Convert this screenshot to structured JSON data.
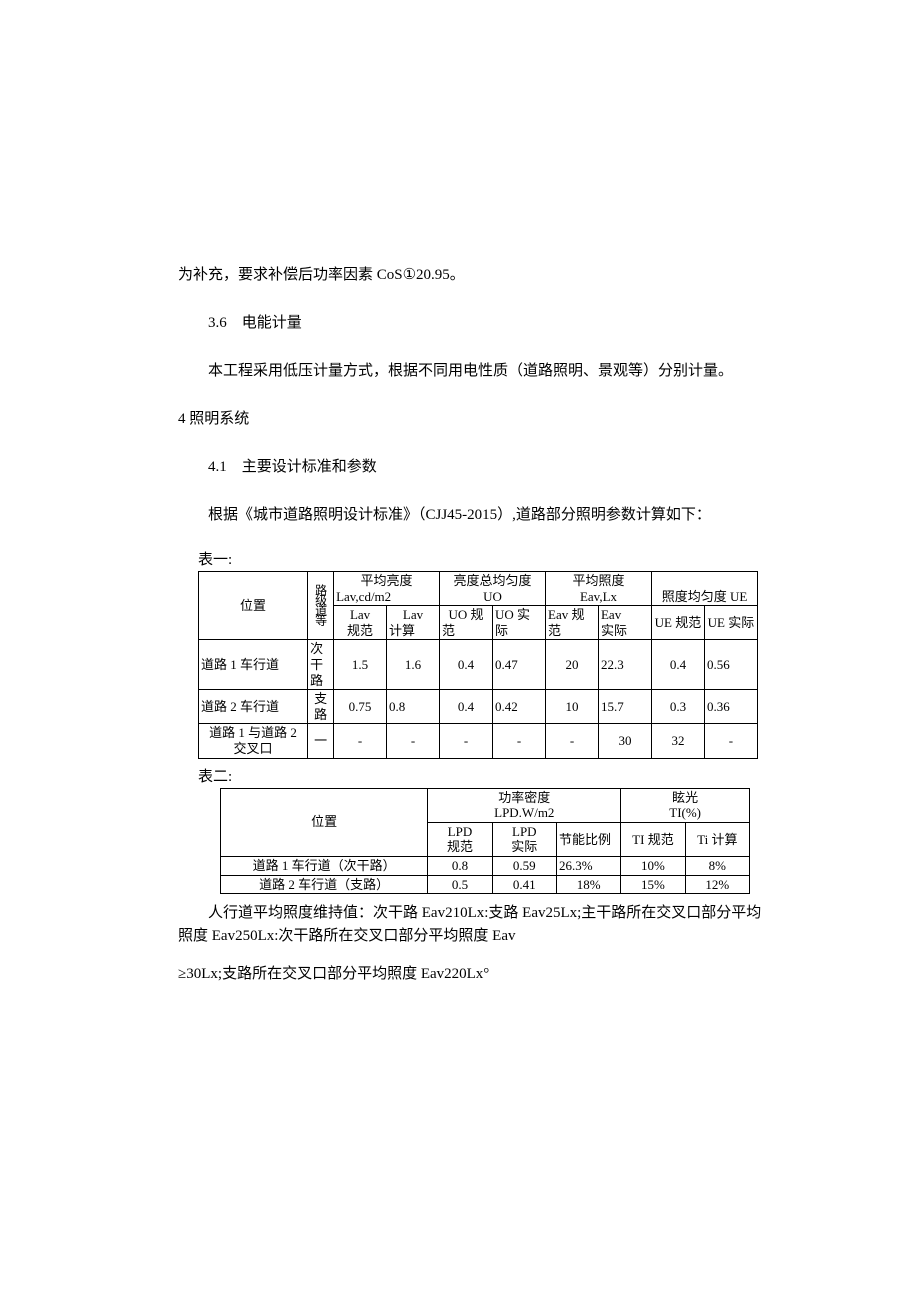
{
  "p1": "为补充，要求补偿后功率因素 CoS①20.95。",
  "p2": "3.6　电能计量",
  "p3": "本工程采用低压计量方式，根据不同用电性质（道路照明、景观等）分别计量。",
  "p4": "4 照明系统",
  "p5": "4.1　主要设计标准和参数",
  "p6": "根据《城市道路照明设计标准》（CJJ45-2015）,道路部分照明参数计算如下：",
  "t1_caption": "表一:",
  "t2_caption": "表二:",
  "p7a": "人行道平均照度维持值：次干路 Eav210Lx:支路 Eav25Lx;主干路所在交叉口部分平均",
  "p7b": "照度 Eav250Lx:次干路所在交叉口部分平均照度 Eav",
  "p8": "≥30Lx;支路所在交叉口部分平均照度 Eav220Lx°",
  "table1": {
    "head_pos": "位置",
    "head_grade": "路级道等",
    "g1": "平均亮度",
    "g1_unit": "Lav,cd/m2",
    "g2": "亮度总均匀度",
    "g2_unit": "UO",
    "g3": "平均照度",
    "g3_unit": "Eav,Lx",
    "g4": "照度均匀度 UE",
    "sub": [
      "Lav规范",
      "Lav计算",
      "UO 规范",
      "UO 实际",
      "Eav 规范",
      "Eav实际",
      "UE 规范",
      "UE 实际"
    ],
    "rows": [
      {
        "pos": "道路 1 车行道",
        "grade": "次干路",
        "v": [
          "1.5",
          "1.6",
          "0.4",
          "0.47",
          "20",
          "22.3",
          "0.4",
          "0.56"
        ]
      },
      {
        "pos": "道路 2 车行道",
        "grade": "支路",
        "v": [
          "0.75",
          "0.8",
          "0.4",
          "0.42",
          "10",
          "15.7",
          "0.3",
          "0.36"
        ]
      },
      {
        "pos": "道路 1 与道路 2交叉口",
        "grade": "一",
        "v": [
          "-",
          "-",
          "-",
          "-",
          "-",
          "30",
          "32",
          "-"
        ]
      }
    ]
  },
  "table2": {
    "head_pos": "位置",
    "g1": "功率密度",
    "g1_unit": "LPD.W/m2",
    "g2": "眩光",
    "g2_unit": "TI(%)",
    "sub": [
      "LPD规范",
      "LPD实际",
      "节能比例",
      "TI 规范",
      "Ti 计算"
    ],
    "rows": [
      {
        "pos": "道路 1 车行道（次干路）",
        "v": [
          "0.8",
          "0.59",
          "26.3%",
          "10%",
          "8%"
        ]
      },
      {
        "pos": "道路 2 车行道（支路）",
        "v": [
          "0.5",
          "0.41",
          "18%",
          "15%",
          "12%"
        ]
      }
    ]
  }
}
